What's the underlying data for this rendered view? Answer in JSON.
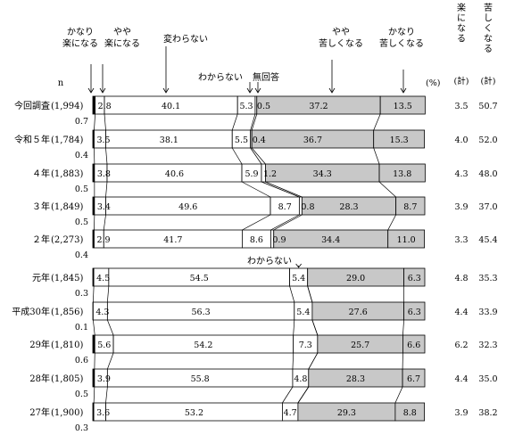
{
  "chart_data": {
    "type": "bar",
    "orientation": "horizontal",
    "stacked": true,
    "percent_unit": "(%)",
    "n_label": "n",
    "series": [
      {
        "name": "かなり楽になる",
        "label_lines": [
          "かなり",
          "楽になる"
        ],
        "fill": "#ffffff"
      },
      {
        "name": "やや楽になる",
        "label_lines": [
          "やや",
          "楽になる"
        ],
        "fill": "#ffffff"
      },
      {
        "name": "変わらない",
        "label_lines": [
          "変わらない"
        ],
        "fill": "#ffffff"
      },
      {
        "name": "わからない",
        "label_lines": [
          "わからない"
        ],
        "fill": "#ffffff"
      },
      {
        "name": "無回答",
        "label_lines": [
          "無回答"
        ],
        "fill": "#ffffff"
      },
      {
        "name": "やや苦しくなる",
        "label_lines": [
          "やや",
          "苦しくなる"
        ],
        "fill": "#c8c8c8"
      },
      {
        "name": "かなり苦しくなる",
        "label_lines": [
          "かなり",
          "苦しくなる"
        ],
        "fill": "#c8c8c8"
      }
    ],
    "extra_label": "わからない",
    "sum_columns": [
      {
        "header": "楽になる",
        "sub": "(計)"
      },
      {
        "header": "苦しくなる",
        "sub": "(計)"
      }
    ],
    "rows": [
      {
        "label": "今回調査",
        "n": "(1,994)",
        "values": [
          0.7,
          2.8,
          40.1,
          5.3,
          0.5,
          37.2,
          13.5
        ],
        "sums": [
          "3.5",
          "50.7"
        ]
      },
      {
        "label": "令和５年",
        "n": "(1,784)",
        "values": [
          0.4,
          3.5,
          38.1,
          5.5,
          0.4,
          36.7,
          15.3
        ],
        "sums": [
          "4.0",
          "52.0"
        ]
      },
      {
        "label": "４年",
        "n": "(1,883)",
        "values": [
          0.5,
          3.8,
          40.6,
          5.9,
          1.2,
          34.3,
          13.8
        ],
        "sums": [
          "4.3",
          "48.0"
        ]
      },
      {
        "label": "３年",
        "n": "(1,849)",
        "values": [
          0.5,
          3.4,
          49.6,
          8.7,
          0.8,
          28.3,
          8.7
        ],
        "sums": [
          "3.9",
          "37.0"
        ]
      },
      {
        "label": "２年",
        "n": "(2,273)",
        "values": [
          0.4,
          2.9,
          41.7,
          8.6,
          0.9,
          34.4,
          11.0
        ],
        "sums": [
          "3.3",
          "45.4"
        ]
      },
      {
        "label": "元年",
        "n": "(1,845)",
        "values": [
          0.3,
          4.5,
          54.5,
          5.4,
          null,
          29.0,
          6.3
        ],
        "sums": [
          "4.8",
          "35.3"
        ]
      },
      {
        "label": "平成30年",
        "n": "(1,856)",
        "values": [
          0.1,
          4.3,
          56.3,
          5.4,
          null,
          27.6,
          6.3
        ],
        "sums": [
          "4.4",
          "33.9"
        ]
      },
      {
        "label": "29年",
        "n": "(1,810)",
        "values": [
          0.6,
          5.6,
          54.2,
          7.3,
          null,
          25.7,
          6.6
        ],
        "sums": [
          "6.2",
          "32.3"
        ]
      },
      {
        "label": "28年",
        "n": "(1,805)",
        "values": [
          0.5,
          3.9,
          55.8,
          4.8,
          null,
          28.3,
          6.7
        ],
        "sums": [
          "4.4",
          "35.0"
        ]
      },
      {
        "label": "27年",
        "n": "(1,900)",
        "values": [
          0.3,
          3.6,
          53.2,
          4.7,
          null,
          29.3,
          8.8
        ],
        "sums": [
          "3.9",
          "38.2"
        ]
      }
    ]
  }
}
